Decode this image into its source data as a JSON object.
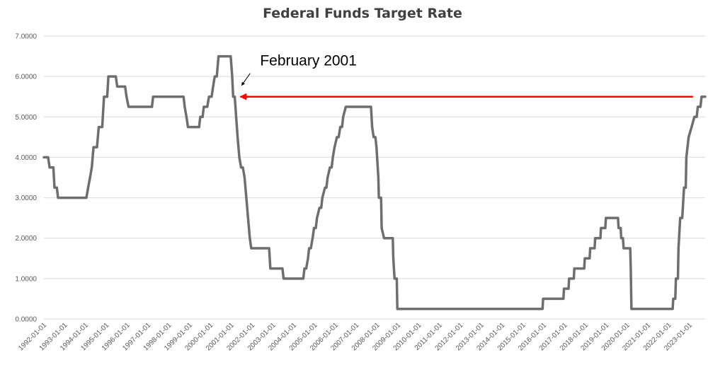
{
  "chart_data": {
    "type": "line",
    "title": "Federal Funds Target Rate",
    "xlabel": "",
    "ylabel": "",
    "ylim": [
      0,
      7
    ],
    "grid": true,
    "legend": "none",
    "y_ticks": [
      "0.0000",
      "1.0000",
      "2.0000",
      "3.0000",
      "4.0000",
      "5.0000",
      "6.0000",
      "7.0000"
    ],
    "x_ticks": [
      "1992-01-01",
      "1993-01-01",
      "1994-01-01",
      "1995-01-01",
      "1996-01-01",
      "1997-01-01",
      "1998-01-01",
      "1999-01-01",
      "2000-01-01",
      "2001-01-01",
      "2002-01-01",
      "2003-01-01",
      "2004-01-01",
      "2005-01-01",
      "2006-01-01",
      "2007-01-01",
      "2008-01-01",
      "2009-01-01",
      "2010-01-01",
      "2011-01-01",
      "2012-01-01",
      "2013-01-01",
      "2014-01-01",
      "2015-01-01",
      "2016-01-01",
      "2017-01-01",
      "2018-01-01",
      "2019-01-01",
      "2020-01-01",
      "2021-01-01",
      "2022-01-01",
      "2023-01-01"
    ],
    "series": [
      {
        "name": "",
        "color": "#6e6e6e",
        "points": [
          [
            "1992-01-01",
            4.0
          ],
          [
            "1992-03-15",
            4.0
          ],
          [
            "1992-04-10",
            3.75
          ],
          [
            "1992-06-15",
            3.75
          ],
          [
            "1992-07-05",
            3.25
          ],
          [
            "1992-08-15",
            3.25
          ],
          [
            "1992-09-05",
            3.0
          ],
          [
            "1994-01-15",
            3.0
          ],
          [
            "1994-02-15",
            3.25
          ],
          [
            "1994-03-20",
            3.5
          ],
          [
            "1994-04-20",
            3.75
          ],
          [
            "1994-05-20",
            4.25
          ],
          [
            "1994-07-20",
            4.25
          ],
          [
            "1994-08-20",
            4.75
          ],
          [
            "1994-10-20",
            4.75
          ],
          [
            "1994-11-20",
            5.5
          ],
          [
            "1995-01-15",
            5.5
          ],
          [
            "1995-02-05",
            6.0
          ],
          [
            "1995-06-15",
            6.0
          ],
          [
            "1995-07-10",
            5.75
          ],
          [
            "1995-11-25",
            5.75
          ],
          [
            "1995-12-20",
            5.5
          ],
          [
            "1996-01-25",
            5.25
          ],
          [
            "1997-03-10",
            5.25
          ],
          [
            "1997-03-30",
            5.5
          ],
          [
            "1998-09-15",
            5.5
          ],
          [
            "1998-10-05",
            5.25
          ],
          [
            "1998-11-05",
            5.0
          ],
          [
            "1998-12-01",
            4.75
          ],
          [
            "1999-06-15",
            4.75
          ],
          [
            "1999-07-05",
            5.0
          ],
          [
            "1999-08-15",
            5.0
          ],
          [
            "1999-09-05",
            5.25
          ],
          [
            "1999-11-05",
            5.25
          ],
          [
            "1999-12-05",
            5.5
          ],
          [
            "2000-01-20",
            5.5
          ],
          [
            "2000-02-15",
            5.75
          ],
          [
            "2000-03-15",
            6.0
          ],
          [
            "2000-04-20",
            6.0
          ],
          [
            "2000-05-20",
            6.5
          ],
          [
            "2000-12-20",
            6.5
          ],
          [
            "2001-01-15",
            6.0
          ],
          [
            "2001-02-01",
            5.5
          ],
          [
            "2001-03-01",
            5.5
          ],
          [
            "2001-03-25",
            5.0
          ],
          [
            "2001-04-20",
            4.5
          ],
          [
            "2001-05-20",
            4.0
          ],
          [
            "2001-06-20",
            3.75
          ],
          [
            "2001-07-20",
            3.75
          ],
          [
            "2001-08-20",
            3.5
          ],
          [
            "2001-09-20",
            3.0
          ],
          [
            "2001-10-20",
            2.5
          ],
          [
            "2001-11-20",
            2.0
          ],
          [
            "2001-12-15",
            1.75
          ],
          [
            "2002-10-25",
            1.75
          ],
          [
            "2002-11-15",
            1.25
          ],
          [
            "2003-06-15",
            1.25
          ],
          [
            "2003-07-05",
            1.0
          ],
          [
            "2004-06-15",
            1.0
          ],
          [
            "2004-07-05",
            1.25
          ],
          [
            "2004-08-05",
            1.25
          ],
          [
            "2004-09-05",
            1.5
          ],
          [
            "2004-09-25",
            1.75
          ],
          [
            "2004-10-25",
            1.75
          ],
          [
            "2004-11-25",
            2.0
          ],
          [
            "2004-12-20",
            2.25
          ],
          [
            "2005-01-20",
            2.25
          ],
          [
            "2005-02-10",
            2.5
          ],
          [
            "2005-03-25",
            2.75
          ],
          [
            "2005-04-25",
            2.75
          ],
          [
            "2005-05-15",
            3.0
          ],
          [
            "2005-06-30",
            3.25
          ],
          [
            "2005-07-25",
            3.25
          ],
          [
            "2005-08-15",
            3.5
          ],
          [
            "2005-09-25",
            3.75
          ],
          [
            "2005-10-25",
            3.75
          ],
          [
            "2005-11-15",
            4.0
          ],
          [
            "2005-12-15",
            4.25
          ],
          [
            "2006-01-25",
            4.5
          ],
          [
            "2006-02-25",
            4.5
          ],
          [
            "2006-03-25",
            4.75
          ],
          [
            "2006-04-25",
            4.75
          ],
          [
            "2006-05-15",
            5.0
          ],
          [
            "2006-06-30",
            5.25
          ],
          [
            "2007-09-15",
            5.25
          ],
          [
            "2007-10-05",
            4.75
          ],
          [
            "2007-11-01",
            4.5
          ],
          [
            "2007-12-01",
            4.5
          ],
          [
            "2007-12-20",
            4.25
          ],
          [
            "2008-01-22",
            3.5
          ],
          [
            "2008-01-31",
            3.0
          ],
          [
            "2008-03-10",
            3.0
          ],
          [
            "2008-03-20",
            2.25
          ],
          [
            "2008-05-01",
            2.0
          ],
          [
            "2008-10-01",
            2.0
          ],
          [
            "2008-10-10",
            1.5
          ],
          [
            "2008-11-01",
            1.0
          ],
          [
            "2008-12-10",
            1.0
          ],
          [
            "2008-12-20",
            0.25
          ],
          [
            "2015-12-10",
            0.25
          ],
          [
            "2015-12-20",
            0.5
          ],
          [
            "2016-12-10",
            0.5
          ],
          [
            "2016-12-20",
            0.75
          ],
          [
            "2017-03-10",
            0.75
          ],
          [
            "2017-03-20",
            1.0
          ],
          [
            "2017-06-10",
            1.0
          ],
          [
            "2017-06-20",
            1.25
          ],
          [
            "2017-12-10",
            1.25
          ],
          [
            "2017-12-20",
            1.5
          ],
          [
            "2018-03-15",
            1.5
          ],
          [
            "2018-03-25",
            1.75
          ],
          [
            "2018-06-10",
            1.75
          ],
          [
            "2018-06-20",
            2.0
          ],
          [
            "2018-09-20",
            2.0
          ],
          [
            "2018-09-30",
            2.25
          ],
          [
            "2018-12-15",
            2.25
          ],
          [
            "2018-12-25",
            2.5
          ],
          [
            "2019-07-25",
            2.5
          ],
          [
            "2019-08-05",
            2.25
          ],
          [
            "2019-09-10",
            2.25
          ],
          [
            "2019-09-20",
            2.0
          ],
          [
            "2019-10-20",
            2.0
          ],
          [
            "2019-11-01",
            1.75
          ],
          [
            "2020-02-25",
            1.75
          ],
          [
            "2020-03-05",
            1.25
          ],
          [
            "2020-03-17",
            0.25
          ],
          [
            "2022-03-10",
            0.25
          ],
          [
            "2022-03-20",
            0.5
          ],
          [
            "2022-04-25",
            0.5
          ],
          [
            "2022-05-06",
            1.0
          ],
          [
            "2022-06-10",
            1.0
          ],
          [
            "2022-06-20",
            1.75
          ],
          [
            "2022-07-20",
            2.5
          ],
          [
            "2022-08-25",
            2.5
          ],
          [
            "2022-09-25",
            3.25
          ],
          [
            "2022-10-25",
            3.25
          ],
          [
            "2022-11-05",
            4.0
          ],
          [
            "2022-12-15",
            4.5
          ],
          [
            "2023-02-05",
            4.75
          ],
          [
            "2023-03-25",
            5.0
          ],
          [
            "2023-05-05",
            5.0
          ],
          [
            "2023-05-25",
            5.25
          ],
          [
            "2023-07-10",
            5.25
          ],
          [
            "2023-07-30",
            5.5
          ],
          [
            "2023-10-01",
            5.5
          ]
        ]
      }
    ],
    "annotations": [
      {
        "text": "February 2001",
        "date": "2001-02-01",
        "value": 5.5
      }
    ],
    "colors": {
      "line": "#6e6e6e",
      "arrow_red": "#ff0000",
      "annotation_arrow": "#000000",
      "grid": "#d9d9d9"
    }
  }
}
